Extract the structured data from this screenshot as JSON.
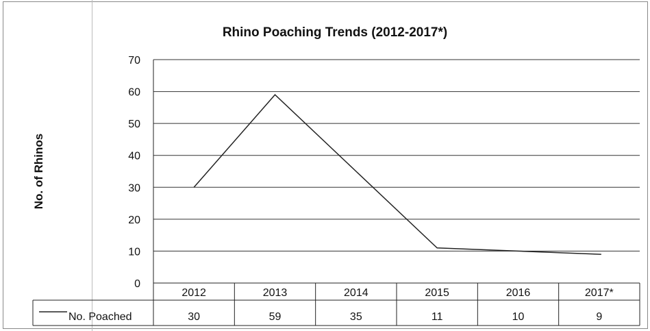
{
  "chart_data": {
    "type": "line",
    "title": "Rhino Poaching Trends (2012-2017*)",
    "xlabel": "",
    "ylabel": "No. of Rhinos",
    "categories": [
      "2012",
      "2013",
      "2014",
      "2015",
      "2016",
      "2017*"
    ],
    "series": [
      {
        "name": "No. Poached",
        "values": [
          30,
          59,
          35,
          11,
          10,
          9
        ]
      }
    ],
    "ylim": [
      0,
      70
    ],
    "yticks": [
      "0",
      "10",
      "20",
      "30",
      "40",
      "50",
      "60",
      "70"
    ],
    "grid": true,
    "legend": "data-table-left",
    "colors": {
      "line": "#222222",
      "grid": "#333333"
    }
  }
}
